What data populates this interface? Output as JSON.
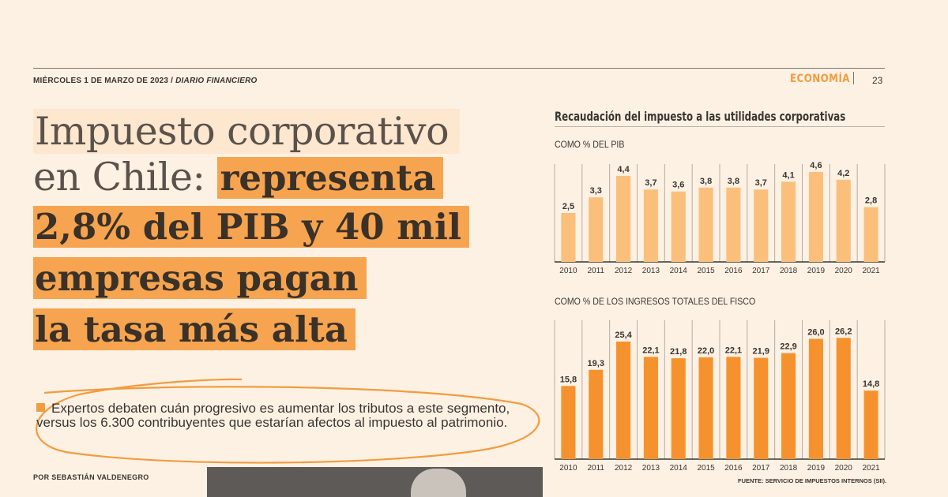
{
  "header": {
    "date": "MIÉRCOLES 1 DE MARZO DE 2023 /",
    "brand": "DIARIO FINANCIERO",
    "section": "ECONOMÍA",
    "page_number": "23"
  },
  "headline": {
    "line1": "Impuesto corporativo",
    "line2_light": "en Chile: ",
    "line2_bold": "representa",
    "line3": "2,8% del PIB y 40 mil",
    "line4": "empresas pagan",
    "line5": "la tasa más alta"
  },
  "deck": "Expertos debaten cuán progresivo es aumentar los tributos a este segmento, versus los 6.300 contribuyentes que estarían afectos al impuesto al patrimonio.",
  "byline": "POR SEBASTIÁN VALDENEGRO",
  "chart_title": "Recaudación del impuesto a las utilidades corporativas",
  "chart_data": [
    {
      "type": "bar",
      "title": "COMO % DEL PIB",
      "categories": [
        "2010",
        "2011",
        "2012",
        "2013",
        "2014",
        "2015",
        "2016",
        "2017",
        "2018",
        "2019",
        "2020",
        "2021"
      ],
      "values": [
        2.5,
        3.3,
        4.4,
        3.7,
        3.6,
        3.8,
        3.8,
        3.7,
        4.1,
        4.6,
        4.2,
        2.8
      ],
      "labels": [
        "2,5",
        "3,3",
        "4,4",
        "3,7",
        "3,6",
        "3,8",
        "3,8",
        "3,7",
        "4,1",
        "4,6",
        "4,2",
        "2,8"
      ],
      "ylim": [
        0,
        5
      ],
      "color": "#fbbf7c",
      "grid": "vertical separators"
    },
    {
      "type": "bar",
      "title": "COMO % DE LOS INGRESOS TOTALES DEL FISCO",
      "categories": [
        "2010",
        "2011",
        "2012",
        "2013",
        "2014",
        "2015",
        "2016",
        "2017",
        "2018",
        "2019",
        "2020",
        "2021"
      ],
      "values": [
        15.8,
        19.3,
        25.4,
        22.1,
        21.8,
        22.0,
        22.1,
        21.9,
        22.9,
        26.0,
        26.2,
        14.8
      ],
      "labels": [
        "15,8",
        "19,3",
        "25,4",
        "22,1",
        "21,8",
        "22,0",
        "22,1",
        "21,9",
        "22,9",
        "26,0",
        "26,2",
        "14,8"
      ],
      "ylim": [
        0,
        30
      ],
      "color": "#f5922e",
      "grid": "vertical separators"
    }
  ],
  "source": "FUENTE: SERVICIO DE IMPUESTOS INTERNOS (SII).",
  "colors": {
    "background": "#fdf1e4",
    "highlight": "#f6a44f",
    "accent": "#f19c3e",
    "bar_light": "#fbbf7c",
    "bar_dark": "#f5922e"
  }
}
